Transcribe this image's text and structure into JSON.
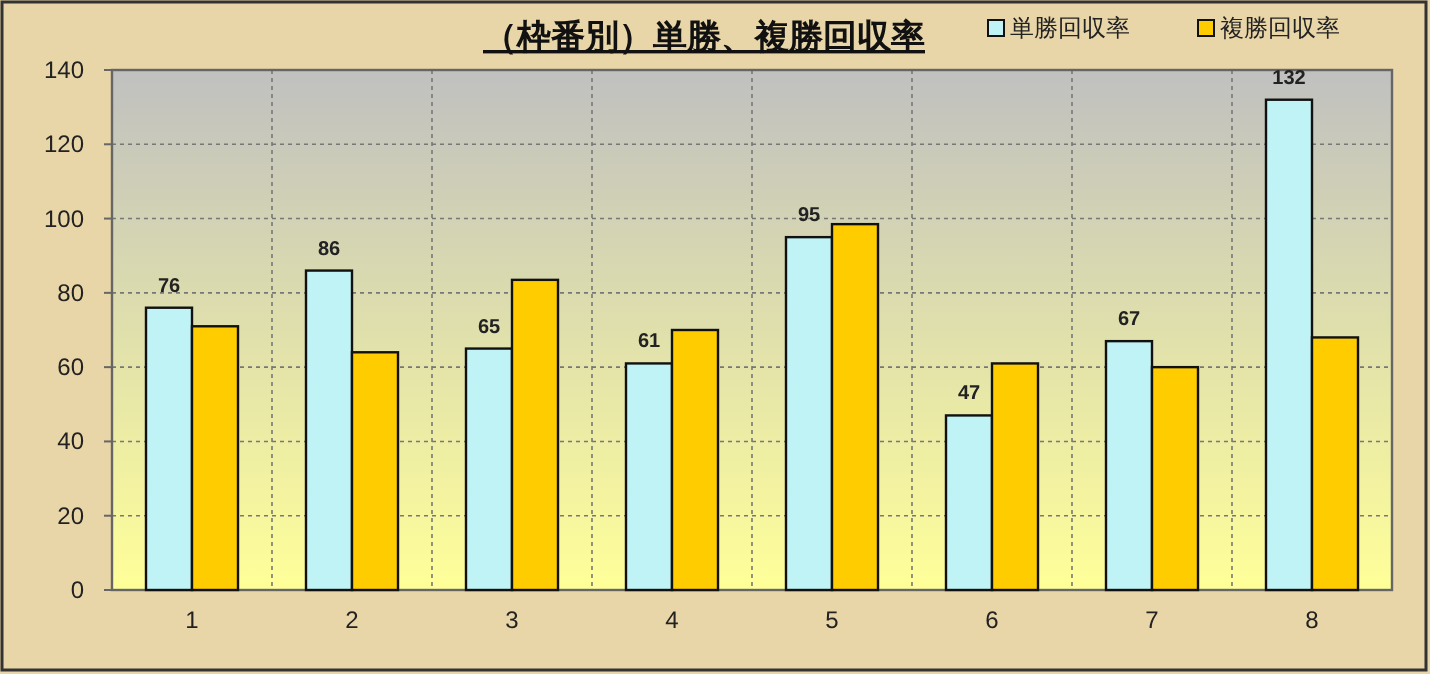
{
  "chart_data": {
    "type": "bar",
    "title": "（枠番別）単勝、複勝回収率",
    "categories": [
      "1",
      "2",
      "3",
      "4",
      "5",
      "6",
      "7",
      "8"
    ],
    "series": [
      {
        "name": "単勝回収率",
        "color": "#bff3f5",
        "values": [
          76,
          86,
          65,
          61,
          95,
          47,
          67,
          132
        ],
        "value_labels": [
          "76",
          "86",
          "65",
          "61",
          "95",
          "47",
          "67",
          "132"
        ]
      },
      {
        "name": "複勝回収率",
        "color": "#ffcc00",
        "values": [
          71,
          64,
          83.5,
          70,
          98.5,
          61,
          60,
          68
        ]
      }
    ],
    "ylim": [
      0,
      140
    ],
    "yticks": [
      0,
      20,
      40,
      60,
      80,
      100,
      120,
      140
    ],
    "grid": true,
    "legend": "top right"
  }
}
